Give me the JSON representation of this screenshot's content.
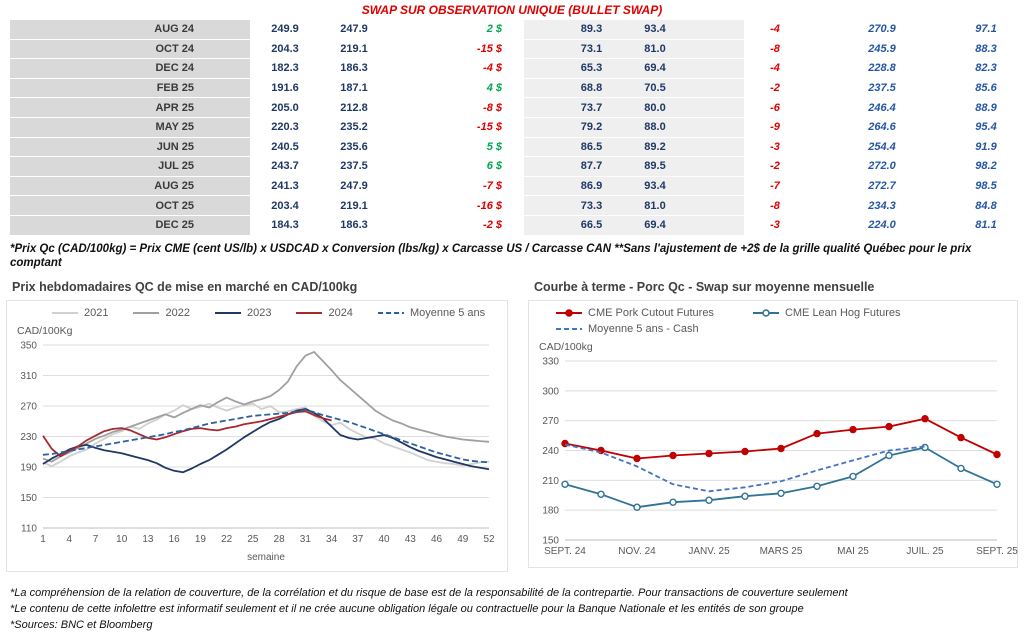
{
  "colors": {
    "title_red": "#e00000",
    "table_navy": "#1f3864",
    "table_blue": "#2456a4",
    "positive_green": "#00a651",
    "negative_red": "#e00000",
    "month_col_gray": "#d9d9d9",
    "band_gray": "#efefef"
  },
  "table": {
    "title": "SWAP SUR OBSERVATION UNIQUE (BULLET SWAP)",
    "rows": [
      {
        "month": "AUG 24",
        "values": [
          "249.9",
          "247.9",
          "2 $",
          "89.3",
          "93.4",
          "-4",
          "270.9",
          "97.1"
        ]
      },
      {
        "month": "OCT 24",
        "values": [
          "204.3",
          "219.1",
          "-15 $",
          "73.1",
          "81.0",
          "-8",
          "245.9",
          "88.3"
        ]
      },
      {
        "month": "DEC 24",
        "values": [
          "182.3",
          "186.3",
          "-4 $",
          "65.3",
          "69.4",
          "-4",
          "228.8",
          "82.3"
        ]
      },
      {
        "month": "FEB 25",
        "values": [
          "191.6",
          "187.1",
          "4 $",
          "68.8",
          "70.5",
          "-2",
          "237.5",
          "85.6"
        ]
      },
      {
        "month": "APR 25",
        "values": [
          "205.0",
          "212.8",
          "-8 $",
          "73.7",
          "80.0",
          "-6",
          "246.4",
          "88.9"
        ]
      },
      {
        "month": "MAY 25",
        "values": [
          "220.3",
          "235.2",
          "-15 $",
          "79.2",
          "88.0",
          "-9",
          "264.6",
          "95.4"
        ]
      },
      {
        "month": "JUN 25",
        "values": [
          "240.5",
          "235.6",
          "5 $",
          "86.5",
          "89.2",
          "-3",
          "254.4",
          "91.9"
        ]
      },
      {
        "month": "JUL 25",
        "values": [
          "243.7",
          "237.5",
          "6 $",
          "87.7",
          "89.5",
          "-2",
          "272.0",
          "98.2"
        ]
      },
      {
        "month": "AUG 25",
        "values": [
          "241.3",
          "247.9",
          "-7 $",
          "86.9",
          "93.4",
          "-7",
          "272.7",
          "98.5"
        ]
      },
      {
        "month": "OCT 25",
        "values": [
          "203.4",
          "219.1",
          "-16 $",
          "73.3",
          "81.0",
          "-8",
          "234.3",
          "84.8"
        ]
      },
      {
        "month": "DEC 25",
        "values": [
          "184.3",
          "186.3",
          "-2 $",
          "66.5",
          "69.4",
          "-3",
          "224.0",
          "81.1"
        ]
      }
    ],
    "footnote": "*Prix Qc (CAD/100kg) = Prix CME (cent US/lb) x USDCAD x Conversion (lbs/kg) x Carcasse US / Carcasse CAN **Sans l'ajustement de +2$ de la grille qualité Québec pour le prix comptant"
  },
  "chart_data": [
    {
      "type": "line",
      "title": "Prix hebdomadaires QC de mise en marché en CAD/100kg",
      "ylabel": "CAD/100Kg",
      "xlabel": "semaine",
      "ylim": [
        110,
        350
      ],
      "yticks": [
        110,
        150,
        190,
        230,
        270,
        310,
        350
      ],
      "x_start": 1,
      "x_count": 52,
      "xticks": [
        1,
        4,
        7,
        10,
        13,
        16,
        19,
        22,
        25,
        28,
        31,
        34,
        37,
        40,
        43,
        46,
        49,
        52
      ],
      "grid": true,
      "legend_position": "top",
      "series": [
        {
          "name": "2021",
          "color": "#d0d0d0",
          "values": [
            196,
            191,
            197,
            204,
            209,
            213,
            221,
            227,
            233,
            237,
            243,
            240,
            247,
            252,
            259,
            264,
            271,
            266,
            269,
            273,
            268,
            264,
            268,
            271,
            273,
            266,
            270,
            262,
            263,
            266,
            268,
            257,
            250,
            245,
            248,
            240,
            234,
            229,
            227,
            221,
            217,
            213,
            209,
            204,
            199,
            197,
            195,
            194,
            192,
            194,
            196,
            197
          ]
        },
        {
          "name": "2022",
          "color": "#a0a0a0",
          "values": [
            201,
            197,
            204,
            209,
            215,
            221,
            227,
            231,
            236,
            239,
            243,
            247,
            251,
            255,
            259,
            255,
            261,
            266,
            271,
            268,
            275,
            281,
            276,
            272,
            276,
            279,
            283,
            291,
            302,
            322,
            336,
            341,
            329,
            317,
            304,
            294,
            284,
            274,
            264,
            257,
            251,
            247,
            242,
            239,
            236,
            233,
            230,
            228,
            226,
            225,
            224,
            223
          ]
        },
        {
          "name": "2023",
          "color": "#1f3864",
          "values": [
            194,
            201,
            207,
            213,
            217,
            219,
            215,
            212,
            210,
            208,
            205,
            202,
            199,
            195,
            189,
            185,
            183,
            188,
            194,
            199,
            206,
            213,
            221,
            229,
            236,
            243,
            249,
            253,
            259,
            264,
            266,
            261,
            254,
            243,
            232,
            228,
            226,
            228,
            230,
            232,
            228,
            222,
            216,
            211,
            207,
            203,
            200,
            197,
            194,
            191,
            189,
            187
          ]
        },
        {
          "name": "2024",
          "color": "#a8292e",
          "values": [
            231,
            214,
            204,
            211,
            217,
            225,
            231,
            237,
            240,
            241,
            238,
            233,
            228,
            226,
            229,
            233,
            237,
            240,
            241,
            239,
            238,
            241,
            243,
            246,
            248,
            250,
            253,
            256,
            259,
            262,
            263,
            258,
            254,
            251,
            null,
            null,
            null,
            null,
            null,
            null,
            null,
            null,
            null,
            null,
            null,
            null,
            null,
            null,
            null,
            null,
            null,
            null
          ]
        },
        {
          "name": "Moyenne 5 ans",
          "color": "#2e5f9e",
          "dash": "6 3",
          "values": [
            206,
            207,
            209,
            211,
            213,
            215,
            217,
            219,
            221,
            223,
            225,
            227,
            229,
            231,
            233,
            236,
            238,
            241,
            244,
            247,
            249,
            251,
            253,
            255,
            257,
            258,
            259,
            260,
            261,
            263,
            265,
            262,
            258,
            255,
            252,
            249,
            245,
            241,
            237,
            233,
            229,
            225,
            221,
            217,
            213,
            209,
            206,
            203,
            200,
            198,
            197,
            196
          ]
        }
      ]
    },
    {
      "type": "line",
      "title": "Courbe à terme - Porc Qc - Swap sur moyenne mensuelle",
      "ylabel": "CAD/100kg",
      "ylim": [
        150,
        330
      ],
      "yticks": [
        150,
        180,
        210,
        240,
        270,
        300,
        330
      ],
      "x_count": 13,
      "xtick_labels": [
        "SEPT. 24",
        "NOV. 24",
        "JANV. 25",
        "MARS 25",
        "MAI 25",
        "JUIL. 25",
        "SEPT. 25"
      ],
      "xtick_positions": [
        0,
        2,
        4,
        6,
        8,
        10,
        12
      ],
      "grid": true,
      "legend_position": "top",
      "series": [
        {
          "name": "CME Pork Cutout Futures",
          "color": "#c00000",
          "marker": "dot",
          "values": [
            247,
            240,
            232,
            235,
            237,
            239,
            242,
            257,
            261,
            264,
            272,
            253,
            236
          ]
        },
        {
          "name": "CME Lean Hog Futures",
          "color": "#2f7397",
          "marker": "open",
          "values": [
            206,
            196,
            183,
            188,
            190,
            194,
            197,
            204,
            214,
            235,
            243,
            222,
            206
          ]
        },
        {
          "name": "Moyenne 5 ans - Cash",
          "color": "#4472c4",
          "dash": "5 3",
          "values": [
            246,
            238,
            224,
            206,
            199,
            203,
            209,
            220,
            230,
            240,
            244,
            null,
            null
          ]
        }
      ]
    }
  ],
  "footnotes": [
    "*La compréhension de la relation de couverture, de la corrélation et du risque de base est de la responsabilité de la contrepartie. Pour transactions de couverture seulement",
    "*Le contenu de cette infolettre est informatif seulement et il ne crée aucune obligation légale ou contractuelle pour la Banque Nationale et les entités de son groupe",
    "*Sources: BNC et Bloomberg"
  ]
}
